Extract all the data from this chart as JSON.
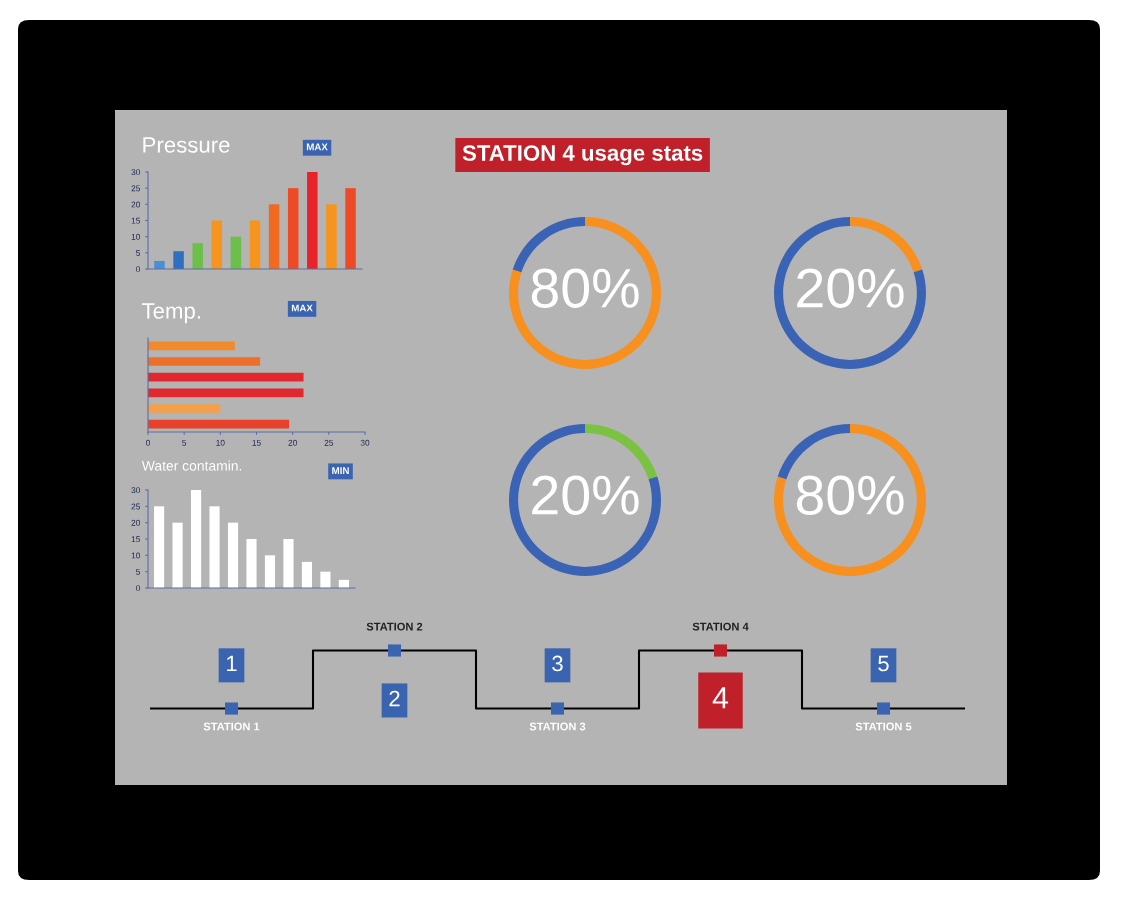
{
  "chart_data": [
    {
      "type": "bar",
      "title": "Pressure",
      "annotations": [
        "MAX"
      ],
      "categories": [
        null,
        null,
        null,
        null,
        null,
        null,
        null,
        null,
        null,
        null,
        null
      ],
      "values": [
        2.5,
        5.5,
        8,
        15,
        10,
        15,
        20,
        25,
        30,
        20,
        25
      ],
      "colors": [
        "#4a8fd6",
        "#2f6fc0",
        "#6cc04a",
        "#f7941d",
        "#6cc04a",
        "#f7941d",
        "#f26a21",
        "#ef4a26",
        "#e8232a",
        "#f7941d",
        "#ef4a26"
      ],
      "ylim": [
        0,
        30
      ],
      "yticks": [
        0,
        5,
        10,
        15,
        20,
        25,
        30
      ]
    },
    {
      "type": "bar",
      "orientation": "horizontal",
      "title": "Temp.",
      "annotations": [
        "MAX"
      ],
      "categories": [
        null,
        null,
        null,
        null,
        null,
        null
      ],
      "values": [
        12,
        15.5,
        21.5,
        21.5,
        10,
        19.5
      ],
      "colors": [
        "#f08a2a",
        "#ee6f2a",
        "#e0282e",
        "#e0282e",
        "#f3a04a",
        "#e8402a"
      ],
      "xlim": [
        0,
        30
      ],
      "xticks": [
        0,
        5,
        10,
        15,
        20,
        25,
        30
      ]
    },
    {
      "type": "bar",
      "title": "Water contamin.",
      "annotations": [
        "MIN"
      ],
      "categories": [
        null,
        null,
        null,
        null,
        null,
        null,
        null,
        null,
        null,
        null,
        null
      ],
      "values": [
        25,
        20,
        30,
        25,
        20,
        15,
        10,
        15,
        8,
        5,
        2.5
      ],
      "color": "#ffffff",
      "ylim": [
        0,
        30
      ],
      "yticks": [
        0,
        5,
        10,
        15,
        20,
        25,
        30
      ]
    },
    {
      "type": "donut",
      "title": "STATION 4 usage stats",
      "annotations": [
        "80%"
      ],
      "categories": [
        null,
        null
      ],
      "values": [
        80,
        20
      ],
      "colors": [
        "#f7901e",
        "#3b63b5"
      ]
    },
    {
      "type": "donut",
      "annotations": [
        "20%"
      ],
      "categories": [
        null,
        null
      ],
      "values": [
        20,
        80
      ],
      "colors": [
        "#f7901e",
        "#3b63b5"
      ]
    },
    {
      "type": "donut",
      "annotations": [
        "20%"
      ],
      "categories": [
        null,
        null
      ],
      "values": [
        20,
        80
      ],
      "colors": [
        "#7cc242",
        "#3b63b5"
      ]
    },
    {
      "type": "donut",
      "annotations": [
        "80%"
      ],
      "categories": [
        null,
        null
      ],
      "values": [
        80,
        20
      ],
      "colors": [
        "#f7901e",
        "#3b63b5"
      ]
    },
    {
      "type": "other",
      "categories": [
        "STATION 1",
        "STATION 2",
        "STATION 3",
        "STATION 4",
        "STATION 5"
      ],
      "annotations": [
        "1",
        "2",
        "3",
        "4",
        "5"
      ],
      "colors": [
        "#3a64b0",
        "#3a64b0",
        "#3a64b0",
        "#c0202a",
        "#3a64b0"
      ]
    }
  ]
}
